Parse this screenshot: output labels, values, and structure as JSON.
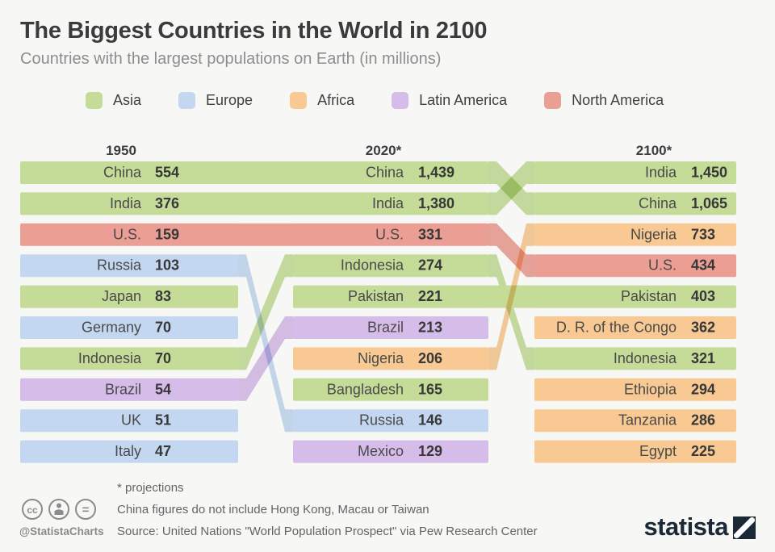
{
  "header": {
    "title": "The Biggest Countries in the World in 2100",
    "subtitle": "Countries with the largest populations on Earth (in millions)"
  },
  "colors": {
    "asia": "#c5dc99",
    "europe": "#c3d7f0",
    "africa": "#f8c992",
    "latam": "#d6bce9",
    "namerica": "#eb9e94",
    "background": "#f7f7f6",
    "brand": "#1b2836"
  },
  "legend": [
    {
      "label": "Asia",
      "color": "#c5dc99"
    },
    {
      "label": "Europe",
      "color": "#c3d7f0"
    },
    {
      "label": "Africa",
      "color": "#f8c992"
    },
    {
      "label": "Latin America",
      "color": "#d6bce9"
    },
    {
      "label": "North America",
      "color": "#eb9e94"
    }
  ],
  "chart_data": {
    "type": "table",
    "description": "Ranked bump chart of the world's largest populations (millions) in 1950, 2020 and 2100, rows colored by continent",
    "columns": [
      {
        "year": "1950",
        "entries": [
          {
            "country": "China",
            "value": "554",
            "region": "asia"
          },
          {
            "country": "India",
            "value": "376",
            "region": "asia"
          },
          {
            "country": "U.S.",
            "value": "159",
            "region": "namerica"
          },
          {
            "country": "Russia",
            "value": "103",
            "region": "europe"
          },
          {
            "country": "Japan",
            "value": "83",
            "region": "asia"
          },
          {
            "country": "Germany",
            "value": "70",
            "region": "europe"
          },
          {
            "country": "Indonesia",
            "value": "70",
            "region": "asia"
          },
          {
            "country": "Brazil",
            "value": "54",
            "region": "latam"
          },
          {
            "country": "UK",
            "value": "51",
            "region": "europe"
          },
          {
            "country": "Italy",
            "value": "47",
            "region": "europe"
          }
        ]
      },
      {
        "year": "2020*",
        "entries": [
          {
            "country": "China",
            "value": "1,439",
            "region": "asia"
          },
          {
            "country": "India",
            "value": "1,380",
            "region": "asia"
          },
          {
            "country": "U.S.",
            "value": "331",
            "region": "namerica"
          },
          {
            "country": "Indonesia",
            "value": "274",
            "region": "asia"
          },
          {
            "country": "Pakistan",
            "value": "221",
            "region": "asia"
          },
          {
            "country": "Brazil",
            "value": "213",
            "region": "latam"
          },
          {
            "country": "Nigeria",
            "value": "206",
            "region": "africa"
          },
          {
            "country": "Bangladesh",
            "value": "165",
            "region": "asia"
          },
          {
            "country": "Russia",
            "value": "146",
            "region": "europe"
          },
          {
            "country": "Mexico",
            "value": "129",
            "region": "latam"
          }
        ]
      },
      {
        "year": "2100*",
        "entries": [
          {
            "country": "India",
            "value": "1,450",
            "region": "asia"
          },
          {
            "country": "China",
            "value": "1,065",
            "region": "asia"
          },
          {
            "country": "Nigeria",
            "value": "733",
            "region": "africa"
          },
          {
            "country": "U.S.",
            "value": "434",
            "region": "namerica"
          },
          {
            "country": "Pakistan",
            "value": "403",
            "region": "asia"
          },
          {
            "country": "D. R. of the Congo",
            "value": "362",
            "region": "africa"
          },
          {
            "country": "Indonesia",
            "value": "321",
            "region": "asia"
          },
          {
            "country": "Ethiopia",
            "value": "294",
            "region": "africa"
          },
          {
            "country": "Tanzania",
            "value": "286",
            "region": "africa"
          },
          {
            "country": "Egypt",
            "value": "225",
            "region": "africa"
          }
        ]
      }
    ],
    "flows": [
      {
        "gap": 0,
        "country": "China",
        "from": 1,
        "to": 1,
        "region": "asia"
      },
      {
        "gap": 0,
        "country": "India",
        "from": 2,
        "to": 2,
        "region": "asia"
      },
      {
        "gap": 0,
        "country": "U.S.",
        "from": 3,
        "to": 3,
        "region": "namerica"
      },
      {
        "gap": 0,
        "country": "Russia",
        "from": 4,
        "to": 9,
        "region": "europe"
      },
      {
        "gap": 0,
        "country": "Indonesia",
        "from": 7,
        "to": 4,
        "region": "asia"
      },
      {
        "gap": 0,
        "country": "Brazil",
        "from": 8,
        "to": 6,
        "region": "latam"
      },
      {
        "gap": 1,
        "country": "China",
        "from": 1,
        "to": 2,
        "region": "asia"
      },
      {
        "gap": 1,
        "country": "India",
        "from": 2,
        "to": 1,
        "region": "asia"
      },
      {
        "gap": 1,
        "country": "U.S.",
        "from": 3,
        "to": 4,
        "region": "namerica"
      },
      {
        "gap": 1,
        "country": "Indonesia",
        "from": 4,
        "to": 7,
        "region": "asia"
      },
      {
        "gap": 1,
        "country": "Pakistan",
        "from": 5,
        "to": 5,
        "region": "asia"
      },
      {
        "gap": 1,
        "country": "Nigeria",
        "from": 7,
        "to": 3,
        "region": "africa"
      }
    ]
  },
  "footer": {
    "projections": "* projections",
    "note": "China figures do not include Hong Kong, Macau or Taiwan",
    "source": "Source: United Nations \"World Population Prospect\" via Pew Research Center",
    "handle": "@StatistaCharts"
  },
  "branding": {
    "logo_text": "statista"
  }
}
